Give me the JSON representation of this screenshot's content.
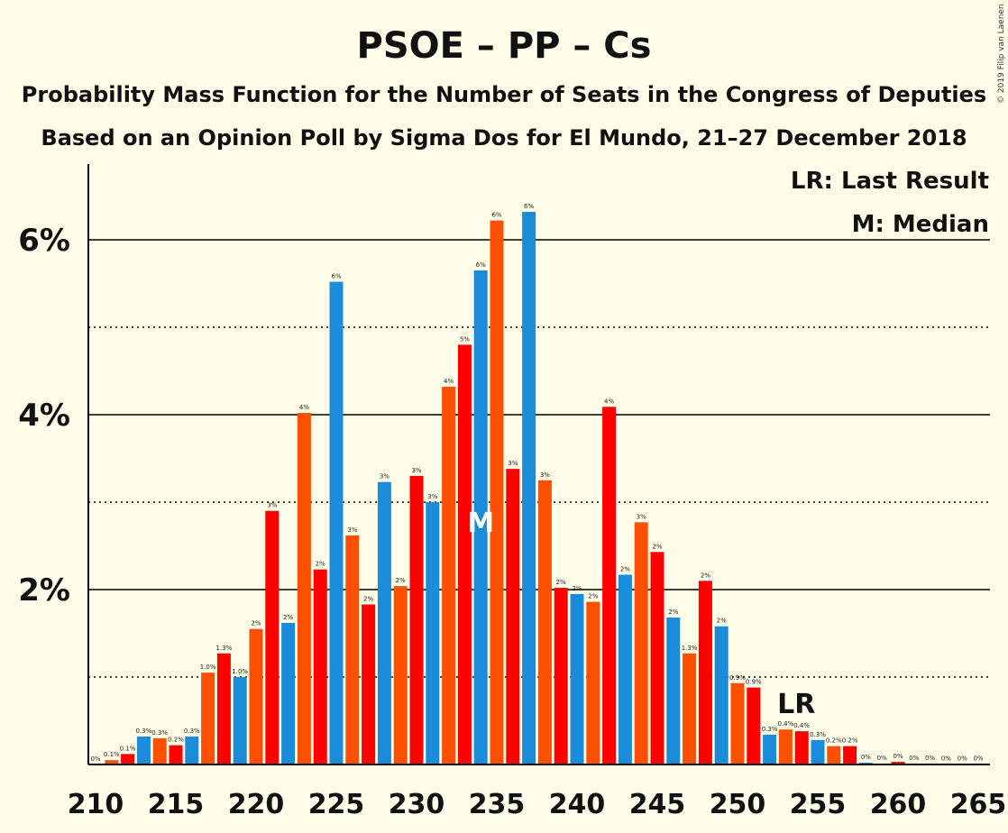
{
  "chart_data": {
    "type": "bar",
    "title": "PSOE – PP – Cs",
    "subtitle": "Probability Mass Function for the Number of Seats in the Congress of Deputies",
    "subtitle2": "Based on an Opinion Poll by Sigma Dos for El Mundo, 21–27 December 2018",
    "copyright": "© 2019 Filip van Laenen",
    "legend": {
      "last_result": "LR: Last Result",
      "median": "M: Median",
      "placement": "top-right"
    },
    "xlim": [
      210,
      265
    ],
    "ylim": [
      0,
      6.8
    ],
    "x_ticks": [
      210,
      215,
      220,
      225,
      230,
      235,
      240,
      245,
      250,
      255,
      260,
      265
    ],
    "x_tick_labels": [
      "210",
      "215",
      "220",
      "225",
      "230",
      "235",
      "240",
      "245",
      "250",
      "255",
      "260",
      "265"
    ],
    "y_ticks_major": [
      2,
      4,
      6
    ],
    "y_tick_labels": [
      "2%",
      "4%",
      "6%"
    ],
    "y_ticks_minor": [
      1,
      3,
      5
    ],
    "colors": [
      "#1A8CD9",
      "#FF4F00",
      "#FF0000"
    ],
    "median_seat": 234,
    "median_label": "M",
    "last_result_seat": 254,
    "last_result_label": "LR",
    "x": [
      210,
      211,
      212,
      213,
      214,
      215,
      216,
      217,
      218,
      219,
      220,
      221,
      222,
      223,
      224,
      225,
      226,
      227,
      228,
      229,
      230,
      231,
      232,
      233,
      234,
      235,
      236,
      237,
      238,
      239,
      240,
      241,
      242,
      243,
      244,
      245,
      246,
      247,
      248,
      249,
      250,
      251,
      252,
      253,
      254,
      255,
      256,
      257,
      258,
      259,
      260,
      261,
      262,
      263,
      264,
      265
    ],
    "values": [
      0,
      0.05,
      0.12,
      0.32,
      0.3,
      0.22,
      0.32,
      1.05,
      1.27,
      1.0,
      1.55,
      2.9,
      1.62,
      4.02,
      2.23,
      5.52,
      2.62,
      1.83,
      3.23,
      2.04,
      3.3,
      3.0,
      4.32,
      4.8,
      5.65,
      6.22,
      3.38,
      6.32,
      3.25,
      2.02,
      1.95,
      1.86,
      4.09,
      2.17,
      2.77,
      2.43,
      1.68,
      1.27,
      2.1,
      1.58,
      0.93,
      0.88,
      0.34,
      0.4,
      0.38,
      0.28,
      0.21,
      0.21,
      0.02,
      0.01,
      0.03,
      0.01,
      0.01,
      0.005,
      0.005,
      0.005
    ],
    "value_labels": [
      "0%",
      "0.1%",
      "0.1%",
      "0.3%",
      "0.3%",
      "0.2%",
      "0.3%",
      "1.0%",
      "1.3%",
      "1.0%",
      "2%",
      "3%",
      "2%",
      "4%",
      "2%",
      "6%",
      "3%",
      "2%",
      "3%",
      "2%",
      "3%",
      "3%",
      "4%",
      "5%",
      "6%",
      "6%",
      "3%",
      "6%",
      "3%",
      "2%",
      "2%",
      "2%",
      "4%",
      "2%",
      "3%",
      "2%",
      "2%",
      "1.3%",
      "2%",
      "2%",
      "0.9%",
      "0.9%",
      "0.3%",
      "0.4%",
      "0.4%",
      "0.3%",
      "0.2%",
      "0.2%",
      "0%",
      "0%",
      "0%",
      "0%",
      "0%",
      "0%",
      "0%",
      "0%"
    ]
  }
}
